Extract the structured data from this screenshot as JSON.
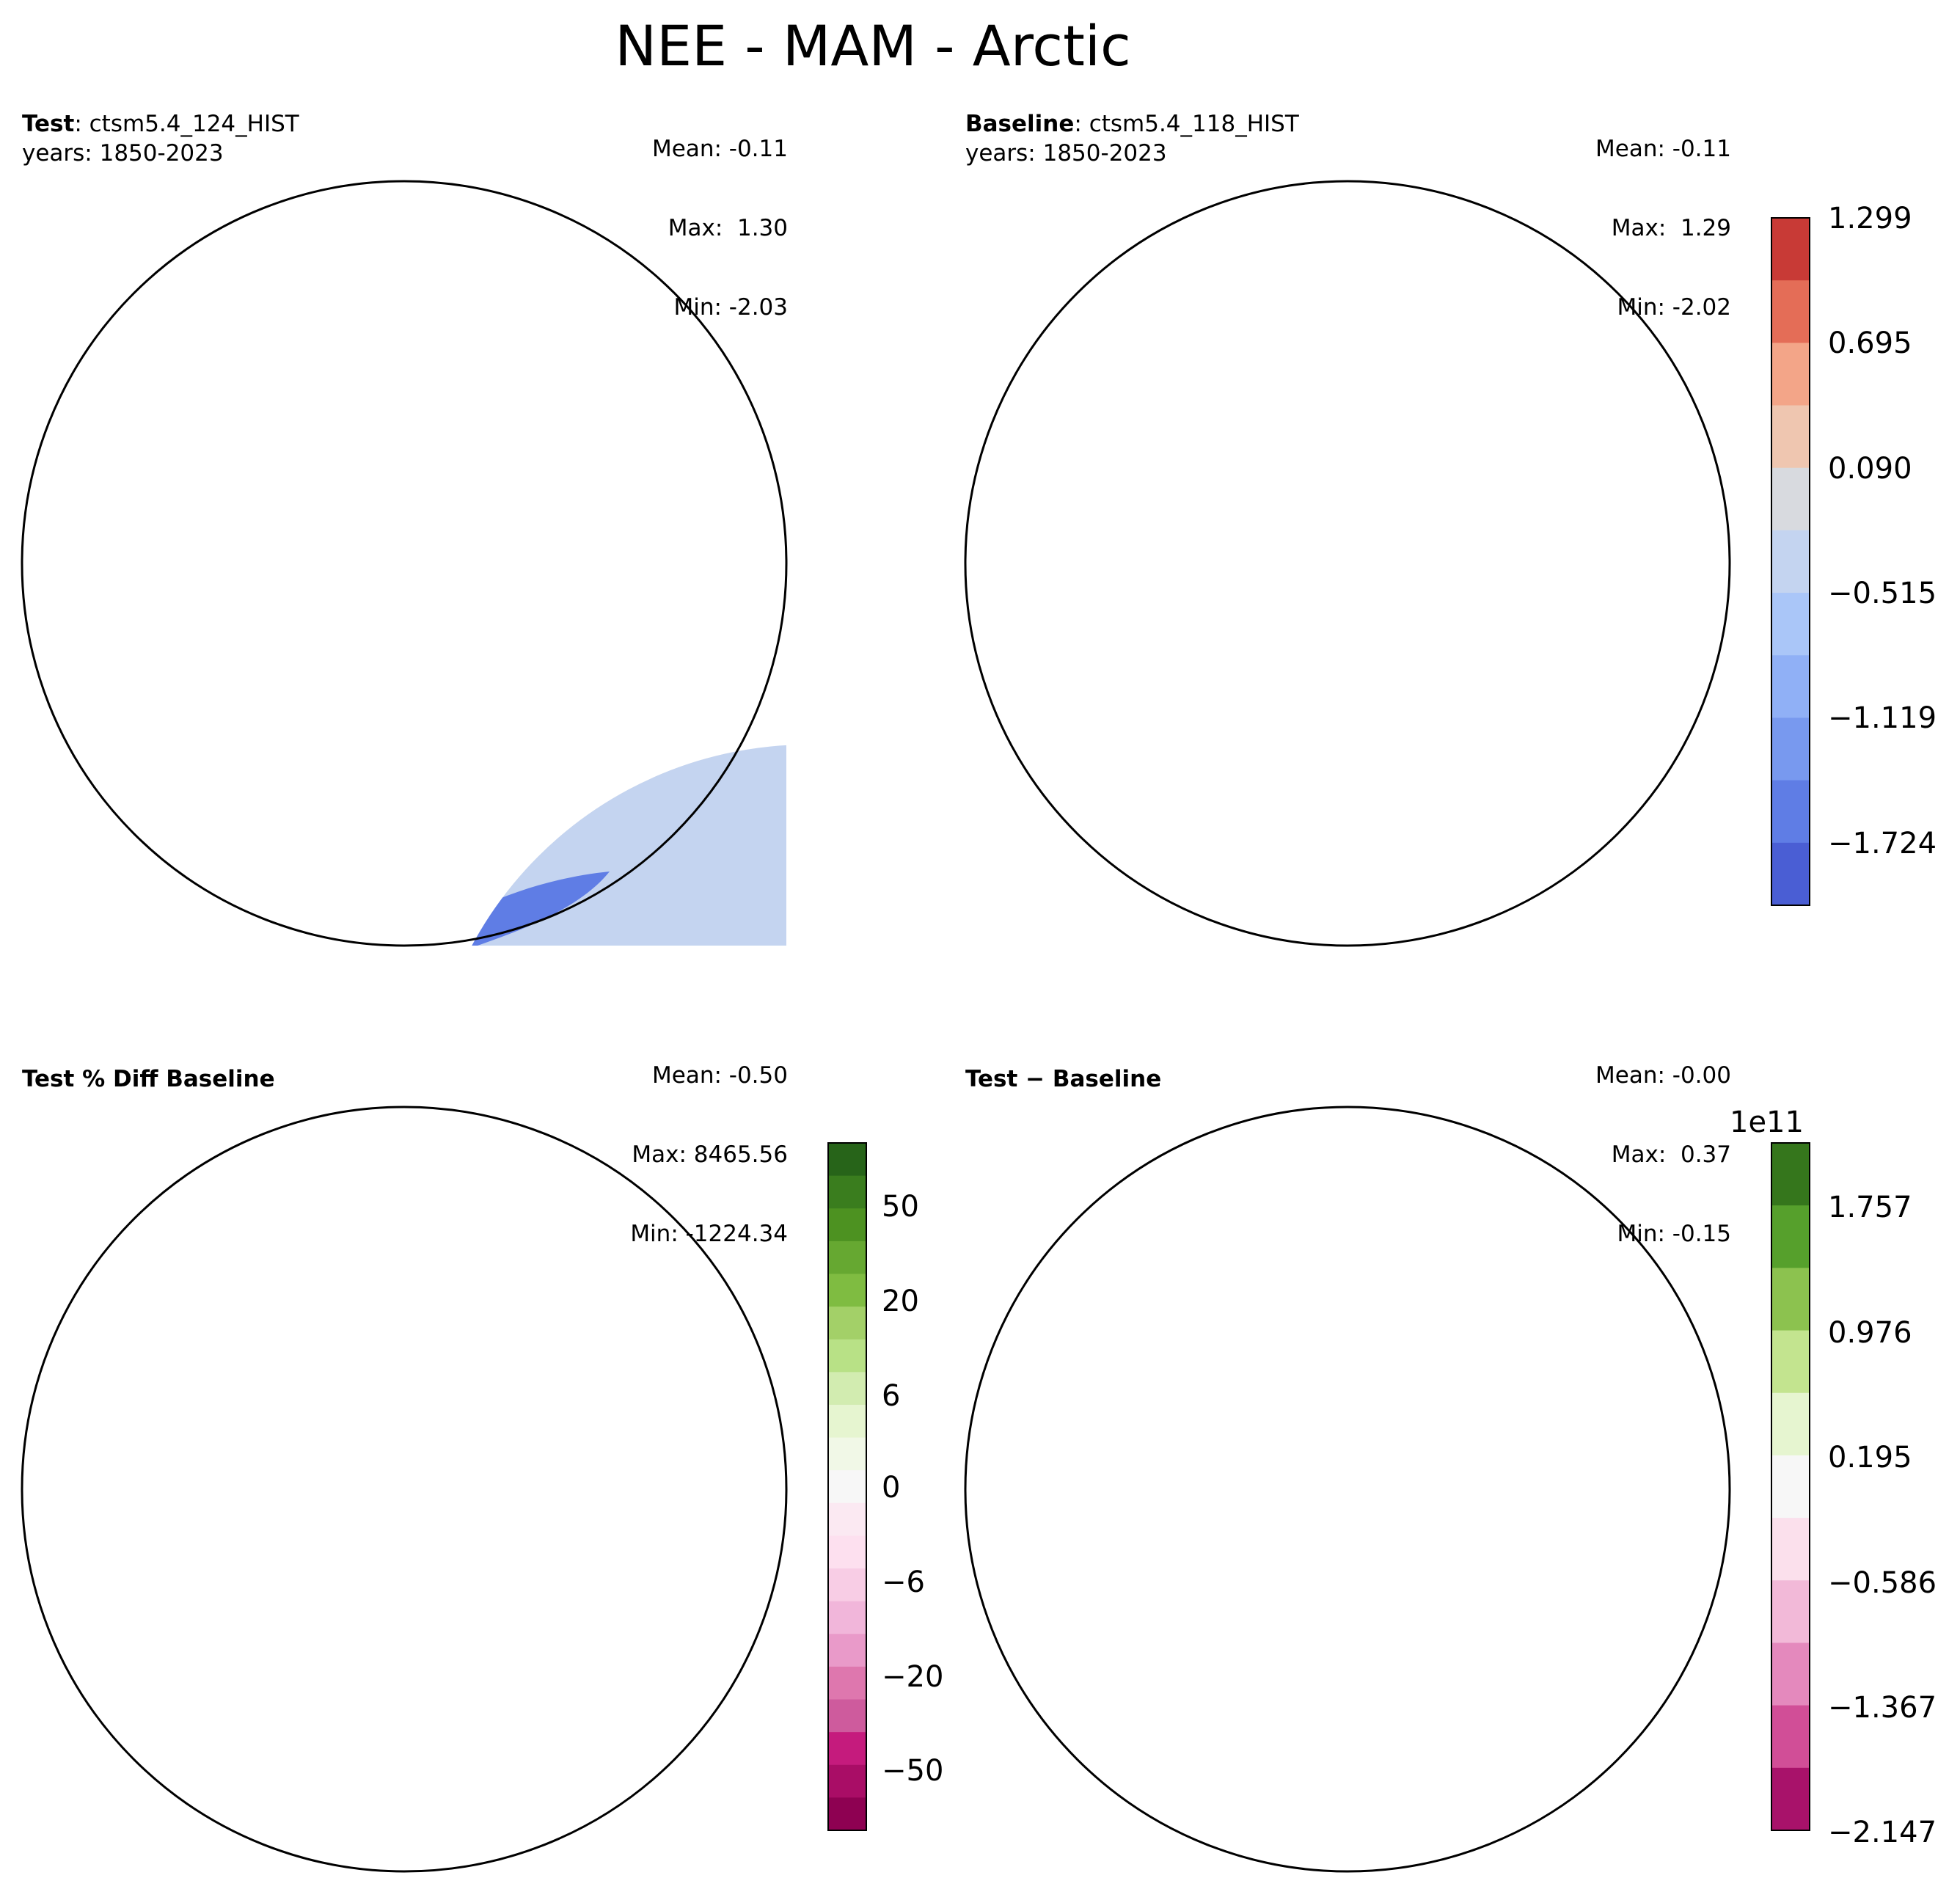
{
  "title": "NEE - MAM - Arctic",
  "panels": {
    "test": {
      "label_bold": "Test",
      "label_sep": ": ",
      "label_name": "ctsm5.4_124_HIST",
      "years": "years: 1850-2023",
      "stats": {
        "mean": "Mean: -0.11",
        "max": "Max:  1.30",
        "min": "Min: -2.03"
      }
    },
    "baseline": {
      "label_bold": "Baseline",
      "label_sep": ": ",
      "label_name": "ctsm5.4_118_HIST",
      "years": "years: 1850-2023",
      "stats": {
        "mean": "Mean: -0.11",
        "max": "Max:  1.29",
        "min": "Min: -2.02"
      }
    },
    "pctdiff": {
      "label_bold": "Test % Diff Baseline",
      "stats": {
        "mean": "Mean: -0.50",
        "max": "Max: 8465.56",
        "min": "Min: -1224.34"
      }
    },
    "diff": {
      "label_bold": "Test − Baseline",
      "stats": {
        "mean": "Mean: -0.00",
        "max": "Max:  0.37",
        "min": "Min: -0.15"
      }
    }
  },
  "colorbars": {
    "top": {
      "ticks": [
        "1.299",
        "0.695",
        "0.090",
        "−0.515",
        "−1.119",
        "−1.724"
      ],
      "colors": [
        "#c83a36",
        "#e46d57",
        "#f3a588",
        "#efc6b0",
        "#d8dadf",
        "#c4d4f0",
        "#aac6f8",
        "#90b0f6",
        "#7899ef",
        "#5f7de5",
        "#4a5ed4"
      ]
    },
    "pct": {
      "ticks": [
        "50",
        "20",
        "6",
        "0",
        "−6",
        "−20",
        "−50"
      ],
      "colors": [
        "#276419",
        "#3a7d1e",
        "#4d9221",
        "#66a831",
        "#7fbc41",
        "#a3d068",
        "#b8e186",
        "#d2ecb0",
        "#e6f5d0",
        "#f1f8e7",
        "#f7f7f7",
        "#fbe9f2",
        "#fde0ef",
        "#f8cde5",
        "#f1b6da",
        "#e99ac9",
        "#de77ae",
        "#ce5b9d",
        "#c51b7d",
        "#a90d66",
        "#8e0152"
      ]
    },
    "diff": {
      "offset": "1e11",
      "ticks": [
        "1.757",
        "0.976",
        "0.195",
        "−0.586",
        "−1.367",
        "−2.147"
      ],
      "colors": [
        "#35761c",
        "#56a02c",
        "#8cc24f",
        "#c3e48f",
        "#e6f5d0",
        "#f7f7f7",
        "#fbe0ec",
        "#f2b9d8",
        "#e489bd",
        "#d14e97",
        "#a8126a"
      ]
    }
  },
  "map_colors": {
    "land_neutral": "#d8dadf",
    "land_pos": "#efc6b0",
    "land_pos2": "#f3a588",
    "land_neg": "#c4d4f0",
    "land_neg2": "#90b0f6",
    "land_neg3": "#5f7de5",
    "pct_base": "#f9eef3",
    "pct_green": "#eef6e4",
    "diff_base": "#f5f5f5",
    "grid": "#808080"
  }
}
